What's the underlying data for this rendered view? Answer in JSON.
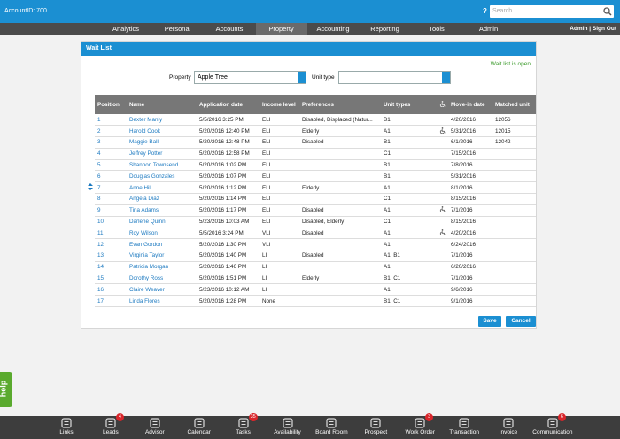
{
  "header": {
    "account": "AccountID: 700",
    "help": "?",
    "search_placeholder": "Search",
    "user_links": "Admin | Sign Out"
  },
  "nav": {
    "items": [
      "Analytics",
      "Personal",
      "Accounts",
      "Property",
      "Accounting",
      "Reporting",
      "Tools",
      "Admin"
    ],
    "active": "Property"
  },
  "panel": {
    "title": "Wait List",
    "status": "Wait list is open",
    "filters": {
      "property_label": "Property",
      "property_value": "Apple Tree",
      "unit_type_label": "Unit type"
    },
    "table": {
      "headers": {
        "position": "Position",
        "name": "Name",
        "application_date": "Application date",
        "income_level": "Income level",
        "preferences": "Preferences",
        "unit_types": "Unit types",
        "move_in_date": "Move-in date",
        "matched_unit": "Matched unit"
      },
      "rows": [
        {
          "position": 1,
          "name": "Dexter Manly",
          "application_date": "5/5/2016 3:25 PM",
          "income_level": "ELI",
          "preferences": "Disabled, Displaced (Natur...",
          "unit_types": "B1",
          "accessible": false,
          "move_in_date": "4/20/2016",
          "matched_unit": "12056"
        },
        {
          "position": 2,
          "name": "Harold Cook",
          "application_date": "5/20/2016 12:40 PM",
          "income_level": "ELI",
          "preferences": "Elderly",
          "unit_types": "A1",
          "accessible": true,
          "move_in_date": "5/31/2016",
          "matched_unit": "12015"
        },
        {
          "position": 3,
          "name": "Maggie Ball",
          "application_date": "5/20/2016 12:48 PM",
          "income_level": "ELI",
          "preferences": "Disabled",
          "unit_types": "B1",
          "accessible": false,
          "move_in_date": "6/1/2016",
          "matched_unit": "12042"
        },
        {
          "position": 4,
          "name": "Jeffrey Potter",
          "application_date": "5/20/2016 12:58 PM",
          "income_level": "ELI",
          "unit_types": "C1",
          "accessible": false,
          "move_in_date": "7/15/2016"
        },
        {
          "position": 5,
          "name": "Shannon Townsend",
          "application_date": "5/20/2016 1:02 PM",
          "income_level": "ELI",
          "unit_types": "B1",
          "accessible": false,
          "move_in_date": "7/8/2016"
        },
        {
          "position": 6,
          "name": "Douglas Gonzales",
          "application_date": "5/20/2016 1:07 PM",
          "income_level": "ELI",
          "unit_types": "B1",
          "accessible": false,
          "move_in_date": "5/31/2016"
        },
        {
          "position": 7,
          "name": "Anne Hill",
          "application_date": "5/20/2016 1:12 PM",
          "income_level": "ELI",
          "preferences": "Elderly",
          "unit_types": "A1",
          "accessible": false,
          "move_in_date": "8/1/2016"
        },
        {
          "position": 8,
          "name": "Angela Diaz",
          "application_date": "5/20/2016 1:14 PM",
          "income_level": "ELI",
          "unit_types": "C1",
          "accessible": false,
          "move_in_date": "8/15/2016"
        },
        {
          "position": 9,
          "name": "Tina Adams",
          "application_date": "5/20/2016 1:17 PM",
          "income_level": "ELI",
          "preferences": "Disabled",
          "unit_types": "A1",
          "accessible": true,
          "move_in_date": "7/1/2016"
        },
        {
          "position": 10,
          "name": "Darlene Quinn",
          "application_date": "5/23/2016 10:03 AM",
          "income_level": "ELI",
          "preferences": "Disabled, Elderly",
          "unit_types": "C1",
          "accessible": false,
          "move_in_date": "8/15/2016"
        },
        {
          "position": 11,
          "name": "Roy Wilson",
          "application_date": "5/5/2016 3:24 PM",
          "income_level": "VLI",
          "preferences": "Disabled",
          "unit_types": "A1",
          "accessible": true,
          "move_in_date": "4/20/2016"
        },
        {
          "position": 12,
          "name": "Evan Gordon",
          "application_date": "5/20/2016 1:30 PM",
          "income_level": "VLI",
          "unit_types": "A1",
          "accessible": false,
          "move_in_date": "6/24/2016"
        },
        {
          "position": 13,
          "name": "Virginia Taylor",
          "application_date": "5/20/2016 1:40 PM",
          "income_level": "LI",
          "preferences": "Disabled",
          "unit_types": "A1, B1",
          "accessible": false,
          "move_in_date": "7/1/2016"
        },
        {
          "position": 14,
          "name": "Patricia Morgan",
          "application_date": "5/20/2016 1:46 PM",
          "income_level": "LI",
          "unit_types": "A1",
          "accessible": false,
          "move_in_date": "6/20/2016"
        },
        {
          "position": 15,
          "name": "Dorothy Ross",
          "application_date": "5/20/2016 1:51 PM",
          "income_level": "LI",
          "preferences": "Elderly",
          "unit_types": "B1, C1",
          "accessible": false,
          "move_in_date": "7/1/2016"
        },
        {
          "position": 16,
          "name": "Claire Weaver",
          "application_date": "5/23/2016 10:12 AM",
          "income_level": "LI",
          "unit_types": "A1",
          "accessible": false,
          "move_in_date": "9/6/2016"
        },
        {
          "position": 17,
          "name": "Linda Flores",
          "application_date": "5/20/2016 1:28 PM",
          "income_level": "None",
          "unit_types": "B1, C1",
          "accessible": false,
          "move_in_date": "9/1/2016"
        }
      ]
    },
    "buttons": {
      "save": "Save",
      "cancel": "Cancel"
    }
  },
  "help_tab": "help",
  "toolbar": {
    "items": [
      {
        "label": "Links"
      },
      {
        "label": "Leads",
        "badge": 4
      },
      {
        "label": "Advisor"
      },
      {
        "label": "Calendar"
      },
      {
        "label": "Tasks",
        "badge": 35
      },
      {
        "label": "Availability"
      },
      {
        "label": "Board Room"
      },
      {
        "label": "Prospect"
      },
      {
        "label": "Work Order",
        "badge": 3
      },
      {
        "label": "Transaction"
      },
      {
        "label": "Invoice"
      },
      {
        "label": "Communication",
        "badge": 6
      }
    ]
  }
}
